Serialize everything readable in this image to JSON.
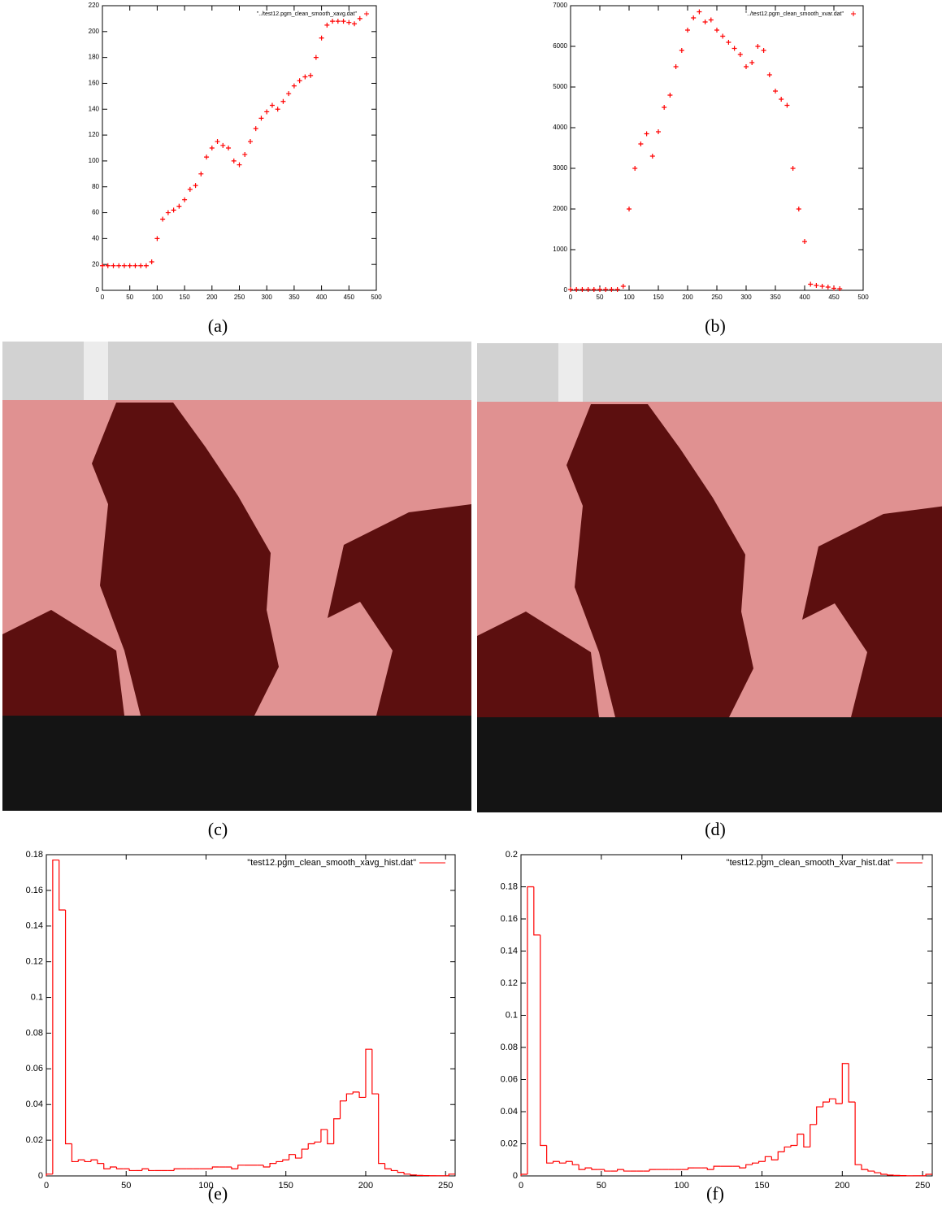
{
  "captions": [
    "(a)",
    "(b)",
    "(c)",
    "(d)",
    "(e)",
    "(f)"
  ],
  "chart_data": [
    {
      "type": "scatter",
      "x": [
        0,
        10,
        20,
        30,
        40,
        50,
        60,
        70,
        80,
        90,
        100,
        110,
        120,
        130,
        140,
        150,
        160,
        170,
        180,
        190,
        200,
        210,
        220,
        230,
        240,
        250,
        260,
        270,
        280,
        290,
        300,
        310,
        320,
        330,
        340,
        350,
        360,
        370,
        380,
        390,
        400,
        410,
        420,
        430,
        440,
        450,
        460,
        470
      ],
      "series": [
        {
          "name": "\"../test12.pgm_clean_smooth_xavg.dat\"",
          "color": "#ff0000",
          "values": [
            19,
            19,
            19,
            19,
            19,
            19,
            19,
            19,
            19,
            22,
            40,
            55,
            60,
            62,
            65,
            70,
            78,
            81,
            90,
            103,
            110,
            115,
            112,
            110,
            100,
            97,
            105,
            115,
            125,
            133,
            138,
            143,
            140,
            146,
            152,
            158,
            162,
            165,
            166,
            180,
            195,
            205,
            208,
            208,
            208,
            207,
            206,
            210
          ]
        }
      ],
      "xlim": [
        0,
        500
      ],
      "xticks": [
        0,
        50,
        100,
        150,
        200,
        250,
        300,
        350,
        400,
        450,
        500
      ],
      "ylim": [
        0,
        220
      ],
      "yticks": [
        0,
        20,
        40,
        60,
        80,
        100,
        120,
        140,
        160,
        180,
        200,
        220
      ]
    },
    {
      "type": "scatter",
      "x": [
        0,
        10,
        20,
        30,
        40,
        50,
        60,
        70,
        80,
        90,
        100,
        110,
        120,
        130,
        140,
        150,
        160,
        170,
        180,
        190,
        200,
        210,
        220,
        230,
        240,
        250,
        260,
        270,
        280,
        290,
        300,
        310,
        320,
        330,
        340,
        350,
        360,
        370,
        380,
        390,
        400,
        410,
        420,
        430,
        440,
        450,
        460
      ],
      "series": [
        {
          "name": "\"../test12.pgm_clean_smooth_xvar.dat\"",
          "color": "#ff0000",
          "values": [
            20,
            20,
            20,
            20,
            20,
            20,
            20,
            20,
            20,
            100,
            2000,
            3000,
            3600,
            3850,
            3300,
            3900,
            4500,
            4800,
            5500,
            5900,
            6400,
            6700,
            6850,
            6600,
            6650,
            6400,
            6250,
            6100,
            5950,
            5800,
            5500,
            5600,
            6000,
            5900,
            5300,
            4900,
            4700,
            4550,
            3000,
            2000,
            1200,
            150,
            120,
            100,
            80,
            50,
            40
          ]
        }
      ],
      "xlim": [
        0,
        500
      ],
      "xticks": [
        0,
        50,
        100,
        150,
        200,
        250,
        300,
        350,
        400,
        450,
        500
      ],
      "ylim": [
        0,
        7000
      ],
      "yticks": [
        0,
        1000,
        2000,
        3000,
        4000,
        5000,
        6000,
        7000
      ]
    },
    {
      "type": "histogram",
      "bins": [
        0,
        4,
        8,
        12,
        16,
        20,
        24,
        28,
        32,
        36,
        40,
        44,
        48,
        52,
        56,
        60,
        64,
        68,
        72,
        76,
        80,
        84,
        88,
        92,
        96,
        100,
        104,
        108,
        112,
        116,
        120,
        124,
        128,
        132,
        136,
        140,
        144,
        148,
        152,
        156,
        160,
        164,
        168,
        172,
        176,
        180,
        184,
        188,
        192,
        196,
        200,
        204,
        208,
        212,
        216,
        220,
        224,
        228,
        232,
        236,
        240,
        244,
        248,
        252,
        256
      ],
      "series": [
        {
          "name": "\"test12.pgm_clean_smooth_xavg_hist.dat\"",
          "color": "#ff0000",
          "values": [
            0.001,
            0.177,
            0.149,
            0.018,
            0.008,
            0.009,
            0.008,
            0.009,
            0.007,
            0.004,
            0.005,
            0.004,
            0.004,
            0.003,
            0.003,
            0.004,
            0.003,
            0.003,
            0.003,
            0.003,
            0.004,
            0.004,
            0.004,
            0.004,
            0.004,
            0.004,
            0.005,
            0.005,
            0.005,
            0.004,
            0.006,
            0.006,
            0.006,
            0.006,
            0.005,
            0.007,
            0.008,
            0.009,
            0.012,
            0.01,
            0.015,
            0.018,
            0.019,
            0.026,
            0.018,
            0.032,
            0.042,
            0.046,
            0.047,
            0.044,
            0.071,
            0.046,
            0.007,
            0.004,
            0.003,
            0.002,
            0.001,
            0.0005,
            0.0003,
            0.0002,
            0.0001,
            0.0001,
            0.0001,
            0.001
          ]
        }
      ],
      "xlim": [
        0,
        256
      ],
      "xticks": [
        0,
        50,
        100,
        150,
        200,
        250
      ],
      "ylim": [
        0,
        0.18
      ],
      "yticks": [
        0,
        0.02,
        0.04,
        0.06,
        0.08,
        0.1,
        0.12,
        0.14,
        0.16,
        0.18
      ]
    },
    {
      "type": "histogram",
      "bins": [
        0,
        4,
        8,
        12,
        16,
        20,
        24,
        28,
        32,
        36,
        40,
        44,
        48,
        52,
        56,
        60,
        64,
        68,
        72,
        76,
        80,
        84,
        88,
        92,
        96,
        100,
        104,
        108,
        112,
        116,
        120,
        124,
        128,
        132,
        136,
        140,
        144,
        148,
        152,
        156,
        160,
        164,
        168,
        172,
        176,
        180,
        184,
        188,
        192,
        196,
        200,
        204,
        208,
        212,
        216,
        220,
        224,
        228,
        232,
        236,
        240,
        244,
        248,
        252,
        256
      ],
      "series": [
        {
          "name": "\"test12.pgm_clean_smooth_xvar_hist.dat\"",
          "color": "#ff0000",
          "values": [
            0.001,
            0.18,
            0.15,
            0.019,
            0.008,
            0.009,
            0.008,
            0.009,
            0.007,
            0.004,
            0.005,
            0.004,
            0.004,
            0.003,
            0.003,
            0.004,
            0.003,
            0.003,
            0.003,
            0.003,
            0.004,
            0.004,
            0.004,
            0.004,
            0.004,
            0.004,
            0.005,
            0.005,
            0.005,
            0.004,
            0.006,
            0.006,
            0.006,
            0.006,
            0.005,
            0.007,
            0.008,
            0.009,
            0.012,
            0.01,
            0.015,
            0.018,
            0.019,
            0.026,
            0.018,
            0.032,
            0.043,
            0.046,
            0.048,
            0.045,
            0.07,
            0.046,
            0.007,
            0.004,
            0.003,
            0.002,
            0.001,
            0.0005,
            0.0003,
            0.0002,
            0.0001,
            0.0001,
            0.0001,
            0.001
          ]
        }
      ],
      "xlim": [
        0,
        256
      ],
      "xticks": [
        0,
        50,
        100,
        150,
        200,
        250
      ],
      "ylim": [
        0,
        0.2
      ],
      "yticks": [
        0,
        0.02,
        0.04,
        0.06,
        0.08,
        0.1,
        0.12,
        0.14,
        0.16,
        0.18,
        0.2
      ]
    }
  ]
}
